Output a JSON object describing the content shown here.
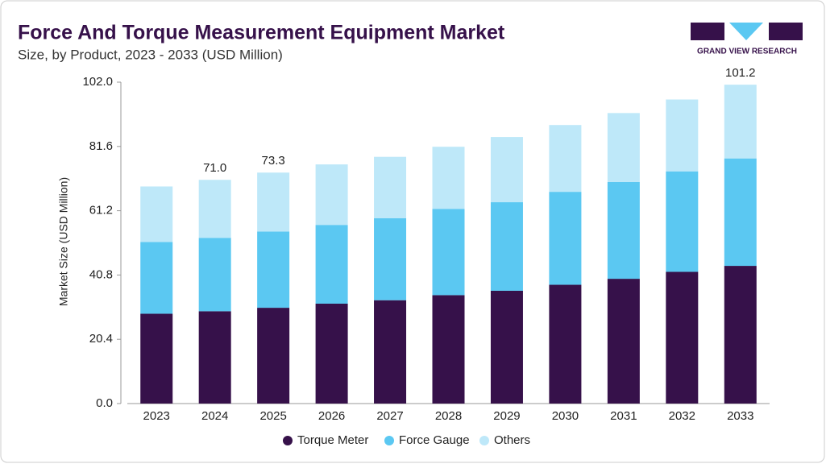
{
  "chart_data": {
    "type": "stacked_bar",
    "title": "Force And Torque Measurement Equipment Market",
    "subtitle": "Size, by Product, 2023 - 2033 (USD Million)",
    "y_label": "Market Size (USD Million)",
    "brand": "GRAND VIEW RESEARCH",
    "categories": [
      "2023",
      "2024",
      "2025",
      "2026",
      "2027",
      "2028",
      "2029",
      "2030",
      "2031",
      "2032",
      "2033"
    ],
    "series": [
      {
        "name": "Torque Meter",
        "color": "#36114a",
        "values": [
          28.5,
          29.3,
          30.4,
          31.7,
          32.8,
          34.4,
          35.8,
          37.7,
          39.6,
          41.8,
          43.7
        ]
      },
      {
        "name": "Force Gauge",
        "color": "#5bc8f2",
        "values": [
          22.8,
          23.3,
          24.2,
          25.0,
          26.0,
          27.4,
          28.1,
          29.5,
          30.7,
          31.9,
          34.1
        ]
      },
      {
        "name": "Others",
        "color": "#bee8f9",
        "values": [
          17.6,
          18.4,
          18.7,
          19.2,
          19.5,
          19.7,
          20.7,
          21.2,
          21.9,
          22.8,
          23.4
        ]
      }
    ],
    "total_labels": [
      {
        "category": "2024",
        "value": 71.0,
        "label": "71.0"
      },
      {
        "category": "2025",
        "value": 73.3,
        "label": "73.3"
      },
      {
        "category": "2033",
        "value": 101.2,
        "label": "101.2"
      }
    ],
    "ylim": [
      0,
      102
    ],
    "yticks": [
      {
        "value": 0,
        "label": "0.0"
      },
      20.4,
      40.8,
      61.2,
      81.6,
      {
        "value": 102,
        "label": "102.0"
      }
    ],
    "grid": false,
    "legend": "bottom"
  }
}
